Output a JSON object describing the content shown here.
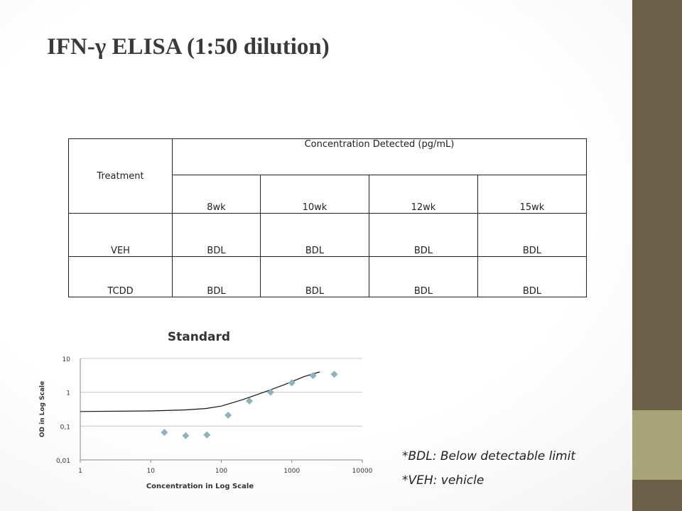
{
  "slide": {
    "title": "IFN-γ ELISA (1:50 dilution)",
    "accent_colors": {
      "sidebar": "#6b5f47",
      "sidebar_accent": "#a9a37a"
    }
  },
  "table": {
    "treatment_header": "Treatment",
    "concentration_header": "Concentration Detected (pg/mL)",
    "timepoints": [
      "8wk",
      "10wk",
      "12wk",
      "15wk"
    ],
    "rows": [
      {
        "treatment": "VEH",
        "values": [
          "BDL",
          "BDL",
          "BDL",
          "BDL"
        ]
      },
      {
        "treatment": "TCDD",
        "values": [
          "BDL",
          "BDL",
          "BDL",
          "BDL"
        ]
      }
    ]
  },
  "notes": {
    "bdl": "*BDL: Below detectable limit",
    "veh": "*VEH: vehicle"
  },
  "chart_data": {
    "type": "scatter",
    "title": "Standard",
    "xlabel": "Concentration in Log Scale",
    "ylabel": "OD in Log Scale",
    "x_scale": "log",
    "y_scale": "log",
    "xlim": [
      1,
      10000
    ],
    "ylim": [
      0.01,
      10
    ],
    "x_ticks": [
      "1",
      "10",
      "100",
      "1000",
      "10000"
    ],
    "y_ticks": [
      "0,01",
      "0,1",
      "1",
      "10"
    ],
    "grid": "horizontal",
    "legend": "none",
    "marker_color": "#8fb3bd",
    "series": [
      {
        "x": [
          15.6,
          31.25,
          62.5,
          125,
          250,
          500,
          1000,
          2000,
          4000
        ],
        "y": [
          0.065,
          0.052,
          0.055,
          0.21,
          0.55,
          1.0,
          1.9,
          3.1,
          3.4
        ]
      }
    ],
    "trendline": {
      "x": [
        1,
        10,
        30,
        60,
        100,
        200,
        400,
        800,
        1500,
        2500
      ],
      "y": [
        0.27,
        0.28,
        0.3,
        0.33,
        0.39,
        0.6,
        1.0,
        1.7,
        2.9,
        4.0
      ]
    }
  }
}
